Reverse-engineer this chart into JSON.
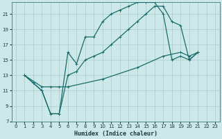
{
  "xlabel": "Humidex (Indice chaleur)",
  "bg_color": "#cce8e8",
  "grid_color": "#b0d0d0",
  "line_color": "#1a6b6b",
  "xlim": [
    -0.5,
    23.5
  ],
  "ylim": [
    7,
    22.5
  ],
  "xticks": [
    0,
    1,
    2,
    3,
    4,
    5,
    6,
    7,
    8,
    9,
    10,
    11,
    12,
    13,
    14,
    15,
    16,
    17,
    18,
    19,
    20,
    21,
    22,
    23
  ],
  "yticks": [
    7,
    9,
    11,
    13,
    15,
    17,
    19,
    21
  ],
  "line1_x": [
    1,
    2,
    3,
    4,
    5,
    6,
    7,
    8,
    9,
    10,
    11,
    12,
    13,
    14,
    15,
    16,
    17,
    18,
    19,
    20,
    21
  ],
  "line1_y": [
    13,
    12,
    11,
    8,
    8,
    16,
    14.5,
    18,
    18,
    20,
    21,
    21.5,
    22,
    22.5,
    22.5,
    22.5,
    21,
    15,
    15.5,
    15,
    16
  ],
  "line2_x": [
    1,
    2,
    3,
    4,
    5,
    6,
    7,
    8,
    9,
    10,
    11,
    12,
    13,
    14,
    15,
    16,
    17,
    18,
    19,
    20,
    21
  ],
  "line2_y": [
    13,
    12,
    11,
    8,
    8,
    13,
    13.5,
    15,
    15.5,
    16,
    17,
    18,
    19,
    20,
    21,
    22,
    22,
    20,
    19.5,
    15,
    16
  ],
  "line3_x": [
    1,
    3,
    4,
    5,
    6,
    10,
    14,
    17,
    19,
    20,
    21
  ],
  "line3_y": [
    13,
    11.5,
    11.5,
    11.5,
    11.5,
    12.5,
    14,
    15.5,
    16,
    15.5,
    16
  ]
}
